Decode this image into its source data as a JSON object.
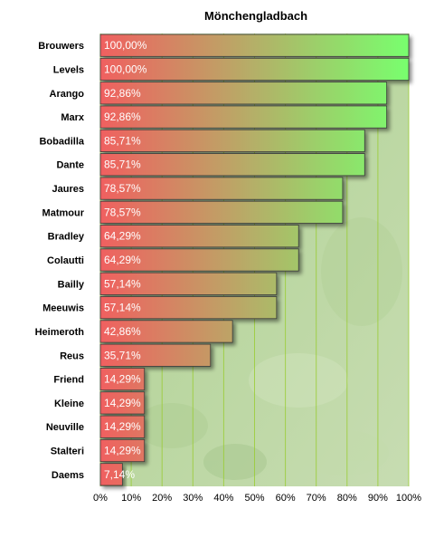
{
  "chart_data": {
    "type": "bar",
    "orientation": "horizontal",
    "title": "Mönchengladbach",
    "xlabel": "",
    "ylabel": "",
    "xlim": [
      0,
      100
    ],
    "grid": true,
    "categories": [
      "Brouwers",
      "Levels",
      "Arango",
      "Marx",
      "Bobadilla",
      "Dante",
      "Jaures",
      "Matmour",
      "Bradley",
      "Colautti",
      "Bailly",
      "Meeuwis",
      "Heimeroth",
      "Reus",
      "Friend",
      "Kleine",
      "Neuville",
      "Stalteri",
      "Daems"
    ],
    "values": [
      100,
      100,
      92.86,
      92.86,
      85.71,
      85.71,
      78.57,
      78.57,
      64.29,
      64.29,
      57.14,
      57.14,
      42.86,
      35.71,
      14.29,
      14.29,
      14.29,
      14.29,
      7.14
    ],
    "data_labels": [
      "100,00%",
      "100,00%",
      "92,86%",
      "92,86%",
      "85,71%",
      "85,71%",
      "78,57%",
      "78,57%",
      "64,29%",
      "64,29%",
      "57,14%",
      "57,14%",
      "42,86%",
      "35,71%",
      "14,29%",
      "14,29%",
      "14,29%",
      "14,29%",
      "7,14%"
    ],
    "tick_labels": [
      "0%",
      "10%",
      "20%",
      "30%",
      "40%",
      "50%",
      "60%",
      "70%",
      "80%",
      "90%",
      "100%"
    ],
    "colors": {
      "bar_start": "#f06060",
      "bar_end": "#78ff6e",
      "grid": "#9acd32"
    }
  }
}
